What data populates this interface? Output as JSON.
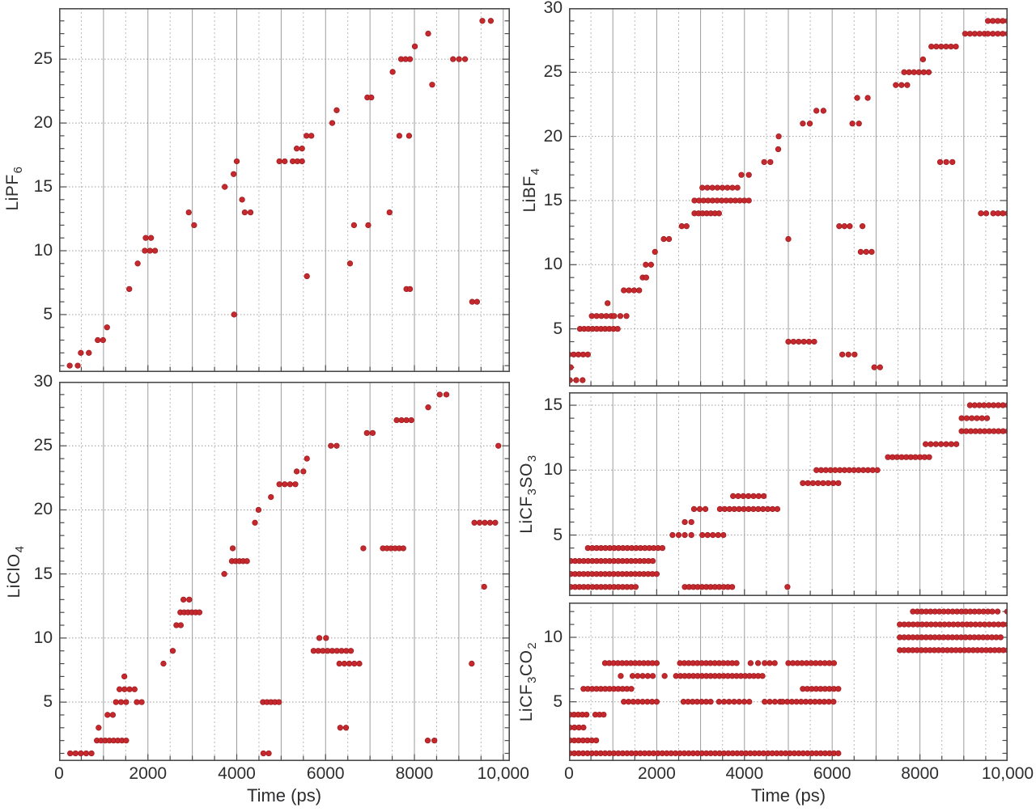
{
  "figure": {
    "background": "#ffffff",
    "dot_color": "#c5282d",
    "dot_edge_color": "#9a1b1f",
    "axis_color": "#4b4b4d",
    "grid_major_color": "#9c9c9c",
    "grid_minor_color": "#b8b8b8",
    "text_color": "#2e2e30",
    "xlabel": "Time (ps)",
    "x_tick_labels": [
      "0",
      "2000",
      "4000",
      "6000",
      "8000",
      "10,000"
    ],
    "x_tick_values": [
      0,
      2000,
      4000,
      6000,
      8000,
      10000
    ],
    "x_grid_step_ps": 500
  },
  "chart_data": [
    {
      "id": "lipf6",
      "type": "scatter",
      "label": "LiPF6",
      "label_parts": [
        [
          "LiPF",
          false
        ],
        [
          "6",
          true
        ]
      ],
      "xlabel": "Time (ps)",
      "xlim": [
        0,
        10150
      ],
      "ylim": [
        0.5,
        29
      ],
      "yticks": [
        5,
        10,
        15,
        20,
        25
      ],
      "run_format": "[y_count, t_start_ps, t_end_ps, num_dots]",
      "runs": [
        [
          1,
          240,
          420,
          2
        ],
        [
          2,
          490,
          670,
          2
        ],
        [
          3,
          870,
          990,
          2
        ],
        [
          4,
          1080,
          1080,
          1
        ],
        [
          7,
          1580,
          1580,
          1
        ],
        [
          9,
          1770,
          1770,
          1
        ],
        [
          10,
          1930,
          2160,
          3
        ],
        [
          11,
          1950,
          2070,
          2
        ],
        [
          13,
          2920,
          2920,
          1
        ],
        [
          12,
          3040,
          3040,
          1
        ],
        [
          15,
          3730,
          3730,
          1
        ],
        [
          5,
          3940,
          3940,
          1
        ],
        [
          16,
          3930,
          3930,
          1
        ],
        [
          17,
          4000,
          4000,
          1
        ],
        [
          14,
          4120,
          4120,
          1
        ],
        [
          13,
          4180,
          4310,
          2
        ],
        [
          17,
          4960,
          5080,
          2
        ],
        [
          17,
          5260,
          5470,
          3
        ],
        [
          18,
          5350,
          5470,
          2
        ],
        [
          19,
          5570,
          5680,
          2
        ],
        [
          8,
          5580,
          5580,
          1
        ],
        [
          20,
          6150,
          6150,
          1
        ],
        [
          21,
          6250,
          6250,
          1
        ],
        [
          9,
          6550,
          6550,
          1
        ],
        [
          12,
          6640,
          6640,
          1
        ],
        [
          22,
          6940,
          7030,
          2
        ],
        [
          12,
          6960,
          6960,
          1
        ],
        [
          13,
          7440,
          7440,
          1
        ],
        [
          24,
          7510,
          7510,
          1
        ],
        [
          19,
          7660,
          7880,
          2
        ],
        [
          25,
          7700,
          7900,
          3
        ],
        [
          7,
          7820,
          7900,
          2
        ],
        [
          26,
          8010,
          8010,
          1
        ],
        [
          27,
          8310,
          8310,
          1
        ],
        [
          23,
          8400,
          8400,
          1
        ],
        [
          25,
          8870,
          9140,
          3
        ],
        [
          6,
          9300,
          9410,
          2
        ],
        [
          28,
          9530,
          9720,
          2
        ]
      ]
    },
    {
      "id": "liclo4",
      "type": "scatter",
      "label": "LiClO4",
      "label_parts": [
        [
          "LiClO",
          false
        ],
        [
          "4",
          true
        ]
      ],
      "xlabel": "Time (ps)",
      "xlim": [
        0,
        10150
      ],
      "ylim": [
        0.4,
        30
      ],
      "yticks": [
        5,
        10,
        15,
        20,
        25,
        30
      ],
      "run_format": "[y_count, t_start_ps, t_end_ps, num_dots]",
      "runs": [
        [
          1,
          250,
          730,
          5
        ],
        [
          2,
          850,
          1510,
          8
        ],
        [
          3,
          890,
          890,
          1
        ],
        [
          4,
          1090,
          1210,
          2
        ],
        [
          5,
          1280,
          1510,
          3
        ],
        [
          6,
          1360,
          1700,
          4
        ],
        [
          7,
          1470,
          1470,
          1
        ],
        [
          5,
          1750,
          1860,
          2
        ],
        [
          8,
          2350,
          2350,
          1
        ],
        [
          9,
          2560,
          2560,
          1
        ],
        [
          11,
          2640,
          2740,
          2
        ],
        [
          12,
          2730,
          3160,
          6
        ],
        [
          13,
          2800,
          2930,
          2
        ],
        [
          15,
          3720,
          3720,
          1
        ],
        [
          16,
          3890,
          4230,
          5
        ],
        [
          17,
          3910,
          3910,
          1
        ],
        [
          19,
          4410,
          4410,
          1
        ],
        [
          20,
          4490,
          4490,
          1
        ],
        [
          1,
          4600,
          4720,
          2
        ],
        [
          5,
          4590,
          4950,
          5
        ],
        [
          21,
          4770,
          4770,
          1
        ],
        [
          22,
          4960,
          5320,
          4
        ],
        [
          23,
          5350,
          5500,
          2
        ],
        [
          24,
          5580,
          5580,
          1
        ],
        [
          9,
          5730,
          6570,
          9
        ],
        [
          10,
          5860,
          6010,
          2
        ],
        [
          25,
          6120,
          6250,
          2
        ],
        [
          8,
          6310,
          6760,
          5
        ],
        [
          3,
          6330,
          6460,
          2
        ],
        [
          17,
          6850,
          6850,
          1
        ],
        [
          26,
          6930,
          7060,
          2
        ],
        [
          17,
          7290,
          7750,
          6
        ],
        [
          27,
          7600,
          7930,
          4
        ],
        [
          2,
          8300,
          8450,
          2
        ],
        [
          28,
          8310,
          8310,
          1
        ],
        [
          29,
          8570,
          8720,
          2
        ],
        [
          8,
          9290,
          9290,
          1
        ],
        [
          19,
          9350,
          9820,
          5
        ],
        [
          14,
          9570,
          9570,
          1
        ],
        [
          25,
          9890,
          9890,
          1
        ]
      ]
    },
    {
      "id": "libf4",
      "type": "scatter",
      "label": "LiBF4",
      "label_parts": [
        [
          "LiBF",
          false
        ],
        [
          "4",
          true
        ]
      ],
      "xlabel": "Time (ps)",
      "xlim": [
        0,
        10000
      ],
      "ylim": [
        0.5,
        30
      ],
      "yticks": [
        5,
        10,
        15,
        20,
        25,
        30
      ],
      "run_format": "[y_count, t_start_ps, t_end_ps, num_dots]",
      "runs": [
        [
          1,
          20,
          310,
          3
        ],
        [
          2,
          40,
          40,
          1
        ],
        [
          3,
          0,
          430,
          5
        ],
        [
          5,
          250,
          1110,
          10
        ],
        [
          6,
          520,
          960,
          5
        ],
        [
          7,
          880,
          880,
          1
        ],
        [
          6,
          1030,
          1310,
          3
        ],
        [
          8,
          1250,
          1600,
          4
        ],
        [
          9,
          1680,
          1760,
          2
        ],
        [
          10,
          1750,
          1870,
          2
        ],
        [
          11,
          1960,
          1960,
          1
        ],
        [
          12,
          2160,
          2280,
          2
        ],
        [
          13,
          2570,
          2680,
          2
        ],
        [
          14,
          2860,
          3420,
          7
        ],
        [
          15,
          2860,
          4100,
          13
        ],
        [
          16,
          3040,
          3840,
          8
        ],
        [
          17,
          3930,
          4100,
          2
        ],
        [
          18,
          4450,
          4590,
          2
        ],
        [
          19,
          4770,
          4770,
          1
        ],
        [
          20,
          4780,
          4780,
          1
        ],
        [
          12,
          5000,
          5000,
          1
        ],
        [
          4,
          5000,
          5590,
          6
        ],
        [
          21,
          5330,
          5490,
          2
        ],
        [
          22,
          5640,
          5800,
          2
        ],
        [
          13,
          6160,
          6400,
          3
        ],
        [
          3,
          6230,
          6510,
          3
        ],
        [
          21,
          6460,
          6610,
          2
        ],
        [
          23,
          6570,
          6810,
          2
        ],
        [
          11,
          6650,
          6900,
          3
        ],
        [
          13,
          6690,
          6690,
          1
        ],
        [
          2,
          6960,
          7090,
          2
        ],
        [
          24,
          7450,
          7710,
          3
        ],
        [
          25,
          7640,
          8200,
          6
        ],
        [
          26,
          8070,
          8070,
          1
        ],
        [
          27,
          8260,
          8820,
          6
        ],
        [
          18,
          8460,
          8740,
          3
        ],
        [
          28,
          9030,
          9470,
          5
        ],
        [
          14,
          9390,
          9510,
          2
        ],
        [
          28,
          9550,
          10000,
          5
        ],
        [
          29,
          9550,
          10000,
          5
        ],
        [
          14,
          9670,
          10000,
          4
        ]
      ]
    },
    {
      "id": "licf3so3",
      "type": "scatter",
      "label": "LiCF3SO3",
      "label_parts": [
        [
          "LiCF",
          false
        ],
        [
          "3",
          true
        ],
        [
          "SO",
          false
        ],
        [
          "3",
          true
        ]
      ],
      "xlabel": "Time (ps)",
      "xlim": [
        0,
        10000
      ],
      "ylim": [
        0.3,
        16
      ],
      "yticks": [
        5,
        10,
        15
      ],
      "run_format": "[y_count, t_start_ps, t_end_ps, num_dots]",
      "runs": [
        [
          1,
          40,
          1520,
          16
        ],
        [
          2,
          40,
          2000,
          21
        ],
        [
          3,
          40,
          1910,
          20
        ],
        [
          4,
          430,
          2130,
          18
        ],
        [
          5,
          2360,
          2500,
          2
        ],
        [
          6,
          2640,
          2790,
          2
        ],
        [
          5,
          2640,
          2790,
          2
        ],
        [
          1,
          2640,
          3720,
          12
        ],
        [
          7,
          2850,
          3110,
          3
        ],
        [
          5,
          3040,
          3520,
          5
        ],
        [
          7,
          3440,
          4750,
          13
        ],
        [
          8,
          3740,
          4440,
          7
        ],
        [
          1,
          4980,
          4980,
          1
        ],
        [
          9,
          5330,
          6140,
          8
        ],
        [
          10,
          5640,
          7030,
          14
        ],
        [
          11,
          7270,
          8210,
          10
        ],
        [
          12,
          8130,
          8830,
          7
        ],
        [
          13,
          8950,
          10000,
          11
        ],
        [
          14,
          8950,
          9530,
          6
        ],
        [
          15,
          9140,
          10000,
          9
        ]
      ]
    },
    {
      "id": "licf3co2",
      "type": "scatter",
      "label": "LiCF3CO2",
      "label_parts": [
        [
          "LiCF",
          false
        ],
        [
          "3",
          true
        ],
        [
          "CO",
          false
        ],
        [
          "2",
          true
        ]
      ],
      "xlabel": "Time (ps)",
      "xlim": [
        0,
        10000
      ],
      "ylim": [
        0.4,
        12.7
      ],
      "yticks": [
        5,
        10
      ],
      "run_format": "[y_count, t_start_ps, t_end_ps, num_dots]",
      "runs": [
        [
          1,
          20,
          6140,
          62
        ],
        [
          2,
          20,
          620,
          7
        ],
        [
          3,
          20,
          330,
          4
        ],
        [
          4,
          20,
          400,
          5
        ],
        [
          6,
          330,
          1420,
          12
        ],
        [
          4,
          600,
          790,
          3
        ],
        [
          8,
          820,
          2000,
          13
        ],
        [
          7,
          1180,
          1180,
          1
        ],
        [
          5,
          1250,
          2000,
          8
        ],
        [
          7,
          1450,
          1910,
          5
        ],
        [
          7,
          2180,
          2180,
          1
        ],
        [
          7,
          2440,
          4410,
          21
        ],
        [
          8,
          2530,
          3820,
          14
        ],
        [
          5,
          2610,
          3230,
          7
        ],
        [
          5,
          3420,
          4110,
          7
        ],
        [
          8,
          4140,
          4310,
          2
        ],
        [
          8,
          4460,
          4690,
          3
        ],
        [
          5,
          4460,
          4810,
          4
        ],
        [
          5,
          4870,
          6030,
          12
        ],
        [
          8,
          5000,
          6040,
          11
        ],
        [
          6,
          5330,
          6140,
          9
        ],
        [
          9,
          7540,
          10000,
          26
        ],
        [
          10,
          7540,
          9840,
          24
        ],
        [
          11,
          7540,
          9070,
          16
        ],
        [
          12,
          7840,
          9650,
          19
        ],
        [
          11,
          9160,
          10000,
          9
        ],
        [
          12,
          9770,
          9770,
          1
        ],
        [
          12,
          9990,
          9990,
          1
        ]
      ]
    }
  ]
}
